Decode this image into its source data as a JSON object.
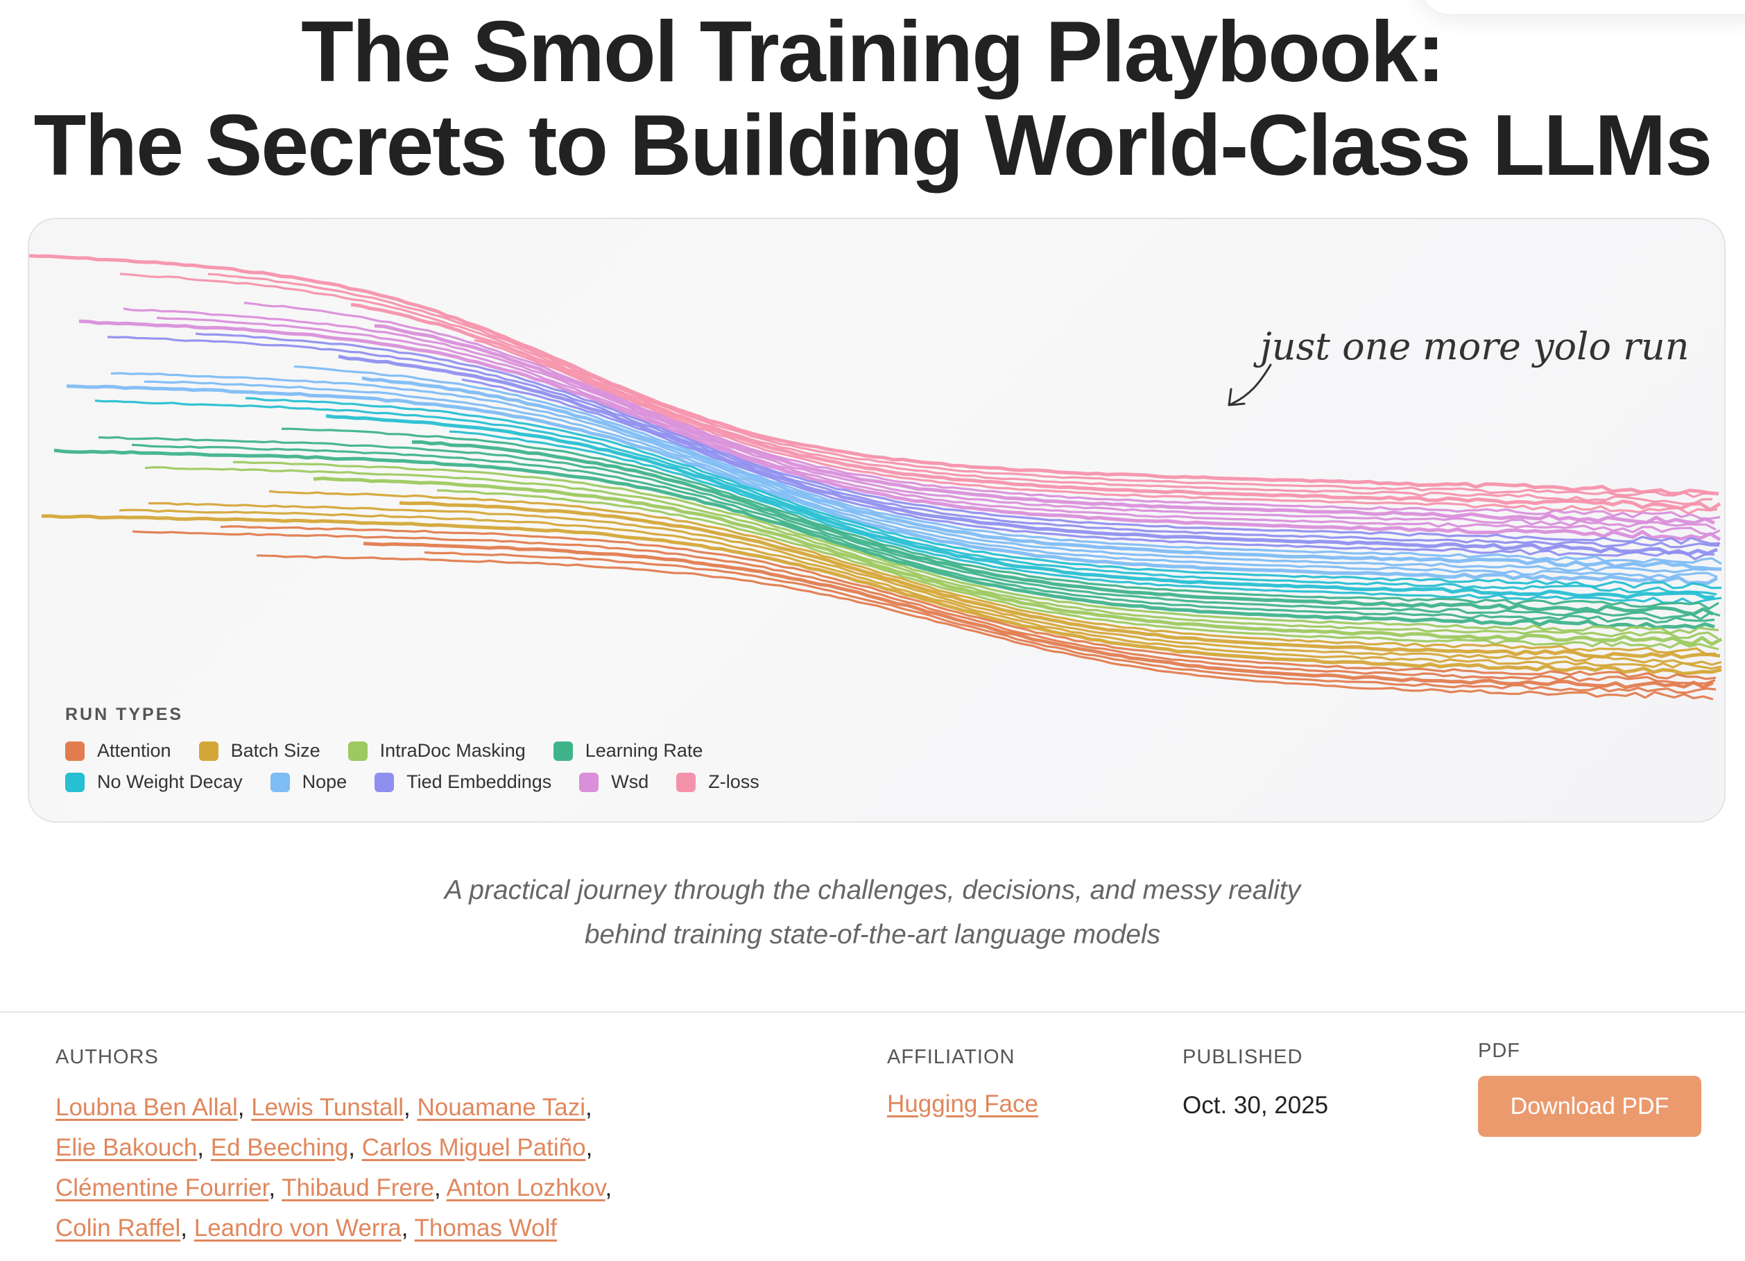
{
  "title": {
    "line1": "The Smol Training Playbook:",
    "line2": "The Secrets to Building World-Class LLMs"
  },
  "banner": {
    "annotation": "just one more yolo run",
    "legend_title": "RUN TYPES",
    "legend": [
      {
        "label": "Attention",
        "color": "#e27c4f"
      },
      {
        "label": "Batch Size",
        "color": "#d4a638"
      },
      {
        "label": "IntraDoc Masking",
        "color": "#9dc95f"
      },
      {
        "label": "Learning Rate",
        "color": "#3fb38a"
      },
      {
        "label": "No Weight Decay",
        "color": "#27bfd2"
      },
      {
        "label": "Nope",
        "color": "#7ebcf4"
      },
      {
        "label": "Tied Embeddings",
        "color": "#8f8ff0"
      },
      {
        "label": "Wsd",
        "color": "#d98fda"
      },
      {
        "label": "Z-loss",
        "color": "#f592ab"
      }
    ]
  },
  "subtitle": {
    "line1": "A practical journey through the challenges, decisions, and messy reality",
    "line2": "behind training state-of-the-art language models"
  },
  "meta": {
    "authors_label": "AUTHORS",
    "authors": [
      "Loubna Ben Allal",
      "Lewis Tunstall",
      "Nouamane Tazi",
      "Elie Bakouch",
      "Ed Beeching",
      "Carlos Miguel Patiño",
      "Clémentine Fourrier",
      "Thibaud Frere",
      "Anton Lozhkov",
      "Colin Raffel",
      "Leandro von Werra",
      "Thomas Wolf"
    ],
    "affiliation_label": "AFFILIATION",
    "affiliation": "Hugging Face",
    "published_label": "PUBLISHED",
    "published": "Oct. 30, 2025",
    "pdf_label": "PDF",
    "pdf_button": "Download PDF"
  }
}
